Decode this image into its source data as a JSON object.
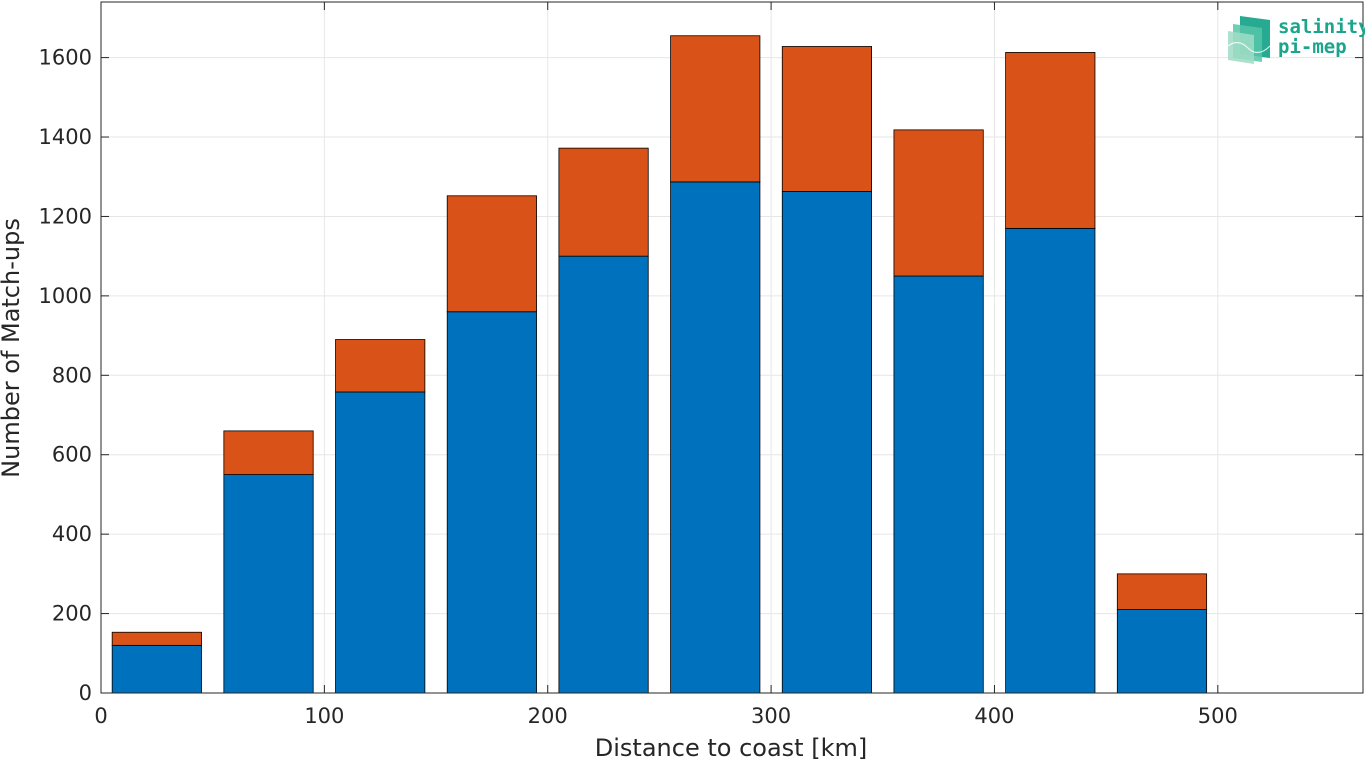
{
  "chart_data": {
    "type": "bar",
    "stacked": true,
    "x": [
      25,
      75,
      125,
      175,
      225,
      275,
      325,
      375,
      425,
      475,
      525
    ],
    "bar_width": 40,
    "series": [
      {
        "color": "#0072bd",
        "values": [
          120,
          550,
          758,
          960,
          1100,
          1287,
          1263,
          1050,
          1170,
          210,
          0
        ]
      },
      {
        "color": "#d95319",
        "values": [
          33,
          110,
          132,
          292,
          272,
          368,
          365,
          368,
          443,
          90,
          0
        ]
      }
    ],
    "xlabel": "Distance to coast [km]",
    "ylabel": "Number of Match-ups",
    "xlim": [
      0,
      565
    ],
    "ylim": [
      0,
      1740
    ],
    "xticks": [
      0,
      100,
      200,
      300,
      400,
      500
    ],
    "yticks": [
      0,
      200,
      400,
      600,
      800,
      1000,
      1200,
      1400,
      1600
    ],
    "grid": true
  },
  "logo": {
    "line1": "salinity",
    "line2": "pi-mep",
    "color": "#1aa58c"
  }
}
